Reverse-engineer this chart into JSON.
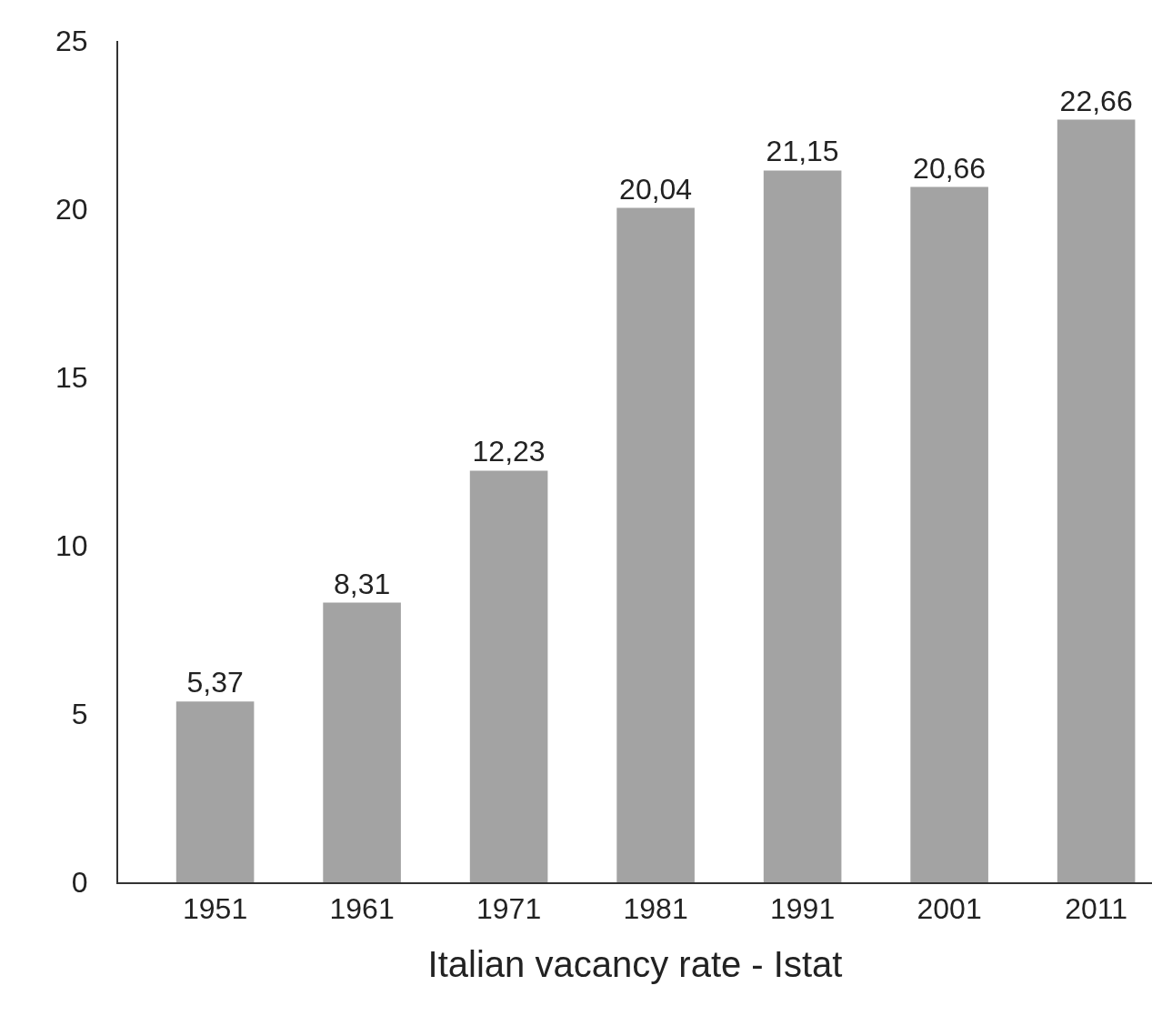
{
  "chart_data": {
    "type": "bar",
    "xlabel": "Italian vacancy rate - Istat",
    "categories": [
      "1951",
      "1961",
      "1971",
      "1981",
      "1991",
      "2001",
      "2011"
    ],
    "values": [
      5.37,
      8.31,
      12.23,
      20.04,
      21.15,
      20.66,
      22.66
    ],
    "value_labels": [
      "5,37",
      "8,31",
      "12,23",
      "20,04",
      "21,15",
      "20,66",
      "22,66"
    ],
    "color": "#a3a3a3",
    "ylim": [
      0,
      25
    ],
    "yticks": [
      0,
      5,
      10,
      15,
      20,
      25
    ]
  }
}
